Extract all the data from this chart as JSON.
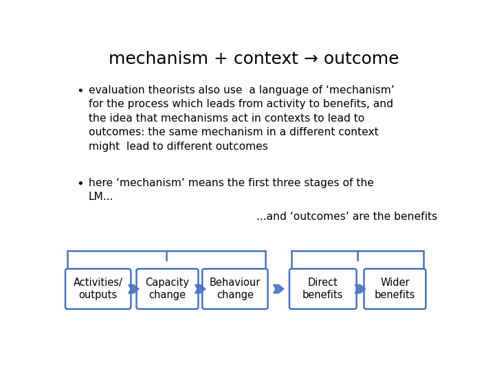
{
  "title": "mechanism + context → outcome",
  "title_fontsize": 18,
  "bullet1_lines": "evaluation theorists also use  a language of ‘mechanism’\nfor the process which leads from activity to benefits, and\nthe idea that mechanisms act in contexts to lead to\noutcomes: the same mechanism in a different context\nmight  lead to different outcomes",
  "bullet2_lines": "here ‘mechanism’ means the first three stages of the\nLM...",
  "annotation": "...and ‘outcomes’ are the benefits",
  "boxes": [
    "Activities/\noutputs",
    "Capacity\nchange",
    "Behaviour\nchange",
    "Direct\nbenefits",
    "Wider\nbenefits"
  ],
  "box_border_color": "#4472C4",
  "arrow_color": "#4472C4",
  "background_color": "#ffffff",
  "text_color": "#000000",
  "font_family": "DejaVu Sans"
}
